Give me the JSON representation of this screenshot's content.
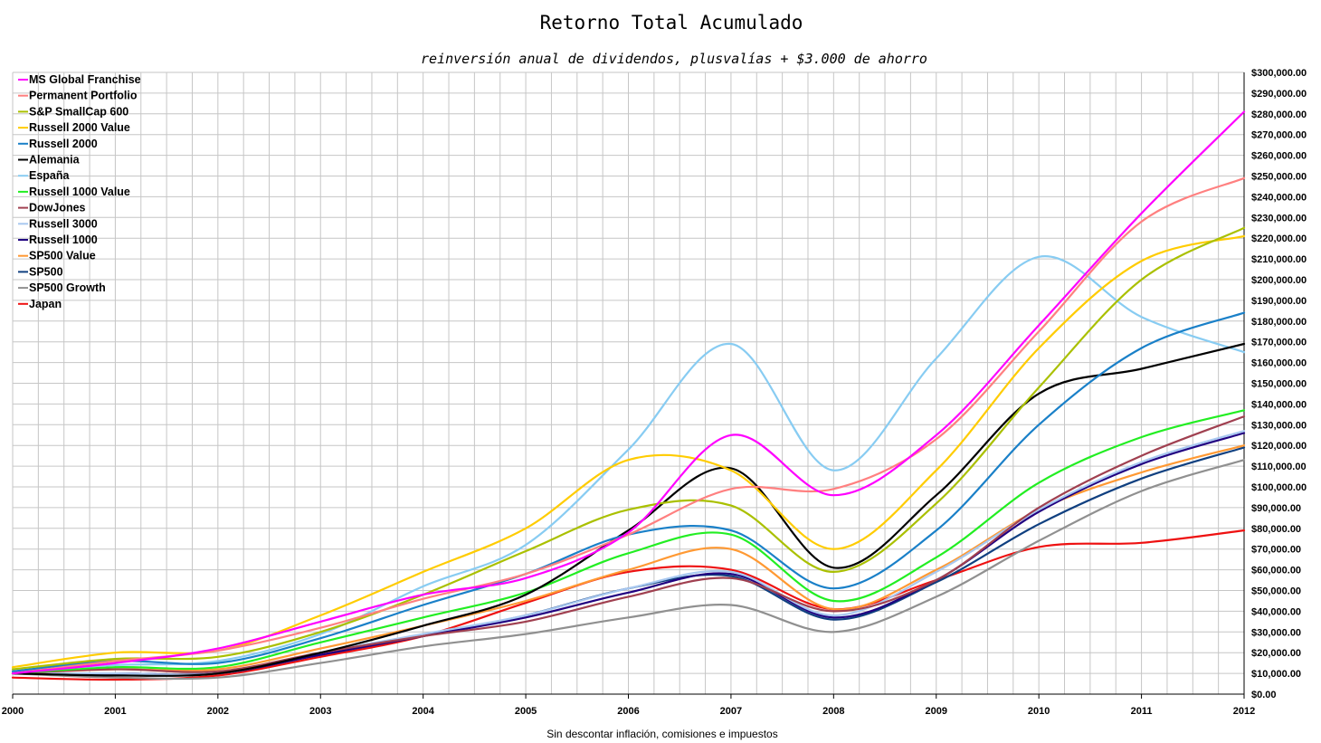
{
  "chart_data": {
    "type": "line",
    "title": "Retorno Total Acumulado",
    "subtitle": "reinversión anual de dividendos, plusvalías + $3.000 de ahorro",
    "footnote": "Sin descontar inflación, comisiones e impuestos",
    "x": [
      "2000",
      "2001",
      "2002",
      "2003",
      "2004",
      "2005",
      "2006",
      "2007",
      "2008",
      "2009",
      "2010",
      "2011",
      "2012"
    ],
    "ylim": [
      0,
      300000
    ],
    "y_ticks": [
      "$0.00",
      "$10,000.00",
      "$20,000.00",
      "$30,000.00",
      "$40,000.00",
      "$50,000.00",
      "$60,000.00",
      "$70,000.00",
      "$80,000.00",
      "$90,000.00",
      "$100,000.00",
      "$110,000.00",
      "$120,000.00",
      "$130,000.00",
      "$140,000.00",
      "$150,000.00",
      "$160,000.00",
      "$170,000.00",
      "$180,000.00",
      "$190,000.00",
      "$200,000.00",
      "$210,000.00",
      "$220,000.00",
      "$230,000.00",
      "$240,000.00",
      "$250,000.00",
      "$260,000.00",
      "$270,000.00",
      "$280,000.00",
      "$290,000.00",
      "$300,000.00"
    ],
    "grid": true,
    "legend_position": "top-left",
    "series": [
      {
        "name": "MS Global Franchise",
        "color": "#ff00ff",
        "values": [
          10000,
          15000,
          22000,
          35000,
          48000,
          56000,
          78000,
          125000,
          96000,
          125000,
          178000,
          232000,
          281000
        ]
      },
      {
        "name": "Permanent Portfolio",
        "color": "#ff8080",
        "values": [
          10000,
          16000,
          21000,
          32000,
          46000,
          58000,
          77000,
          99000,
          99000,
          123000,
          175000,
          228000,
          249000
        ]
      },
      {
        "name": "S&P SmallCap 600",
        "color": "#aac000",
        "values": [
          12000,
          17000,
          18000,
          30000,
          48000,
          69000,
          89000,
          91000,
          59000,
          92000,
          148000,
          200000,
          225000
        ]
      },
      {
        "name": "Russell 2000 Value",
        "color": "#ffcc00",
        "values": [
          13000,
          20000,
          21000,
          38000,
          59000,
          80000,
          113000,
          108000,
          70000,
          108000,
          167000,
          209000,
          221000
        ]
      },
      {
        "name": "Russell 2000",
        "color": "#1a80c8",
        "values": [
          11000,
          16000,
          15000,
          27000,
          43000,
          58000,
          77000,
          79000,
          51000,
          79000,
          130000,
          167000,
          184000
        ]
      },
      {
        "name": "Alemania",
        "color": "#000000",
        "values": [
          10000,
          9000,
          10000,
          20000,
          33000,
          48000,
          79000,
          109000,
          61000,
          96000,
          145000,
          157000,
          169000
        ]
      },
      {
        "name": "España",
        "color": "#88ccf2",
        "values": [
          11000,
          14000,
          16000,
          29000,
          52000,
          72000,
          118000,
          169000,
          108000,
          162000,
          211000,
          182000,
          165000
        ]
      },
      {
        "name": "Russell 1000 Value",
        "color": "#22ee22",
        "values": [
          10000,
          13000,
          13000,
          25000,
          37000,
          49000,
          68000,
          77000,
          45000,
          66000,
          102000,
          124000,
          137000
        ]
      },
      {
        "name": "DowJones",
        "color": "#a04050",
        "values": [
          10000,
          12000,
          11000,
          20000,
          28000,
          35000,
          47000,
          56000,
          40000,
          55000,
          90000,
          115000,
          134000
        ]
      },
      {
        "name": "Russell 3000",
        "color": "#a8c8f0",
        "values": [
          10000,
          10000,
          10000,
          20000,
          29000,
          38000,
          51000,
          59000,
          38000,
          59000,
          89000,
          112000,
          127000
        ]
      },
      {
        "name": "Russell 1000",
        "color": "#200080",
        "values": [
          10000,
          10000,
          10000,
          19000,
          28000,
          37000,
          49000,
          58000,
          37000,
          55000,
          88000,
          111000,
          126000
        ]
      },
      {
        "name": "SP500 Value",
        "color": "#ff9933",
        "values": [
          10000,
          12000,
          12000,
          22000,
          33000,
          45000,
          60000,
          70000,
          41000,
          60000,
          89000,
          107000,
          120000
        ]
      },
      {
        "name": "SP500",
        "color": "#104080",
        "values": [
          10000,
          10000,
          10000,
          19000,
          28000,
          38000,
          51000,
          57000,
          36000,
          54000,
          82000,
          104000,
          119000
        ]
      },
      {
        "name": "SP500 Growth",
        "color": "#909090",
        "values": [
          10000,
          8000,
          8000,
          15000,
          23000,
          29000,
          37000,
          43000,
          30000,
          47000,
          74000,
          98000,
          113000
        ]
      },
      {
        "name": "Japan",
        "color": "#ee1111",
        "values": [
          8000,
          7000,
          9000,
          18000,
          28000,
          44000,
          59000,
          60000,
          41000,
          55000,
          71000,
          73000,
          79000
        ]
      }
    ]
  }
}
